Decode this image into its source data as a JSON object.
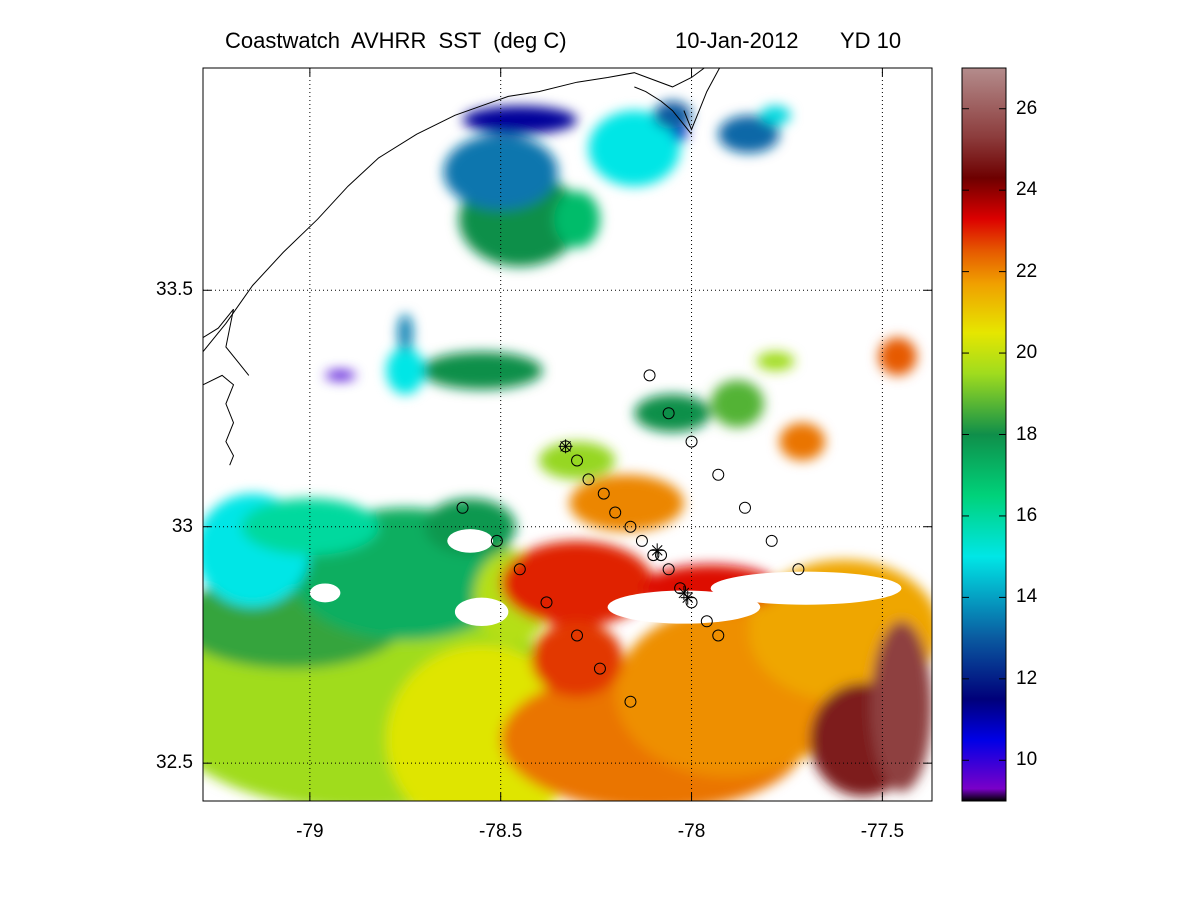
{
  "title": {
    "left": "Coastwatch  AVHRR  SST  (deg C)",
    "date": "10-Jan-2012",
    "yearday": "YD 10"
  },
  "map": {
    "lon_range": [
      -79.28,
      -77.37
    ],
    "lat_range": [
      32.42,
      33.97
    ],
    "x_ticks": [
      -79,
      -78.5,
      -78,
      -77.5
    ],
    "x_tick_labels": [
      "-79",
      "-78.5",
      "-78",
      "-77.5"
    ],
    "y_ticks": [
      32.5,
      33.0,
      33.5
    ],
    "y_tick_labels": [
      "32.5",
      "33",
      "33.5"
    ],
    "grid": "dotted"
  },
  "colorbar": {
    "range": [
      9,
      27
    ],
    "ticks": [
      10,
      12,
      14,
      16,
      18,
      20,
      22,
      24,
      26
    ],
    "tick_labels": [
      "10",
      "12",
      "14",
      "16",
      "18",
      "20",
      "22",
      "24",
      "26"
    ],
    "colors": [
      "#000000",
      "#7a00c8",
      "#0000e6",
      "#00007a",
      "#0a5aa0",
      "#00e6e6",
      "#00d27a",
      "#0f8f4a",
      "#a0dc1e",
      "#e6e600",
      "#f0a000",
      "#e65a00",
      "#dc0000",
      "#6e0000",
      "#8c3c3c",
      "#b48c8c"
    ],
    "color_stops": [
      9,
      9.3,
      10.5,
      11.5,
      13,
      15,
      16.5,
      18,
      19.5,
      20.5,
      21.7,
      22.5,
      23.3,
      24.3,
      25.3,
      27
    ]
  },
  "stations_circle": [
    [
      -78.6,
      33.04
    ],
    [
      -78.51,
      32.97
    ],
    [
      -78.45,
      32.91
    ],
    [
      -78.38,
      32.84
    ],
    [
      -78.3,
      32.77
    ],
    [
      -78.24,
      32.7
    ],
    [
      -78.16,
      32.63
    ],
    [
      -78.33,
      33.17
    ],
    [
      -78.3,
      33.14
    ],
    [
      -78.27,
      33.1
    ],
    [
      -78.23,
      33.07
    ],
    [
      -78.2,
      33.03
    ],
    [
      -78.16,
      33.0
    ],
    [
      -78.13,
      32.97
    ],
    [
      -78.1,
      32.94
    ],
    [
      -78.06,
      32.91
    ],
    [
      -78.03,
      32.87
    ],
    [
      -78.0,
      32.84
    ],
    [
      -77.96,
      32.8
    ],
    [
      -77.93,
      32.77
    ],
    [
      -78.11,
      33.32
    ],
    [
      -78.06,
      33.24
    ],
    [
      -78.0,
      33.18
    ],
    [
      -77.93,
      33.11
    ],
    [
      -77.86,
      33.04
    ],
    [
      -77.79,
      32.97
    ],
    [
      -77.72,
      32.91
    ],
    [
      -78.08,
      32.94
    ]
  ],
  "stations_star": [
    [
      -78.33,
      33.17
    ],
    [
      -78.09,
      32.95
    ],
    [
      -78.02,
      32.86
    ],
    [
      -78.01,
      32.85
    ]
  ],
  "sst_blobs": [
    {
      "lon": -78.85,
      "lat": 32.62,
      "rx": 0.55,
      "ry": 0.22,
      "sst": 19.5
    },
    {
      "lon": -78.55,
      "lat": 32.55,
      "rx": 0.25,
      "ry": 0.2,
      "sst": 20.4
    },
    {
      "lon": -79.05,
      "lat": 32.8,
      "rx": 0.3,
      "ry": 0.1,
      "sst": 18.4
    },
    {
      "lon": -78.75,
      "lat": 32.9,
      "rx": 0.3,
      "ry": 0.14,
      "sst": 17.3
    },
    {
      "lon": -79.15,
      "lat": 32.95,
      "rx": 0.15,
      "ry": 0.12,
      "sst": 15.0
    },
    {
      "lon": -79.0,
      "lat": 33.0,
      "rx": 0.18,
      "ry": 0.06,
      "sst": 16.0
    },
    {
      "lon": -78.58,
      "lat": 33.0,
      "rx": 0.12,
      "ry": 0.06,
      "sst": 17.8
    },
    {
      "lon": -78.47,
      "lat": 32.85,
      "rx": 0.1,
      "ry": 0.1,
      "sst": 19.8
    },
    {
      "lon": -78.1,
      "lat": 32.55,
      "rx": 0.4,
      "ry": 0.15,
      "sst": 22.2
    },
    {
      "lon": -77.9,
      "lat": 32.65,
      "rx": 0.3,
      "ry": 0.18,
      "sst": 21.9
    },
    {
      "lon": -77.6,
      "lat": 32.78,
      "rx": 0.25,
      "ry": 0.15,
      "sst": 21.6
    },
    {
      "lon": -78.3,
      "lat": 32.88,
      "rx": 0.2,
      "ry": 0.09,
      "sst": 23.0
    },
    {
      "lon": -78.3,
      "lat": 32.72,
      "rx": 0.12,
      "ry": 0.08,
      "sst": 22.8
    },
    {
      "lon": -77.95,
      "lat": 32.87,
      "rx": 0.18,
      "ry": 0.05,
      "sst": 23.2
    },
    {
      "lon": -77.55,
      "lat": 32.55,
      "rx": 0.14,
      "ry": 0.12,
      "sst": 24.8
    },
    {
      "lon": -77.45,
      "lat": 32.62,
      "rx": 0.08,
      "ry": 0.18,
      "sst": 25.4
    },
    {
      "lon": -78.17,
      "lat": 33.05,
      "rx": 0.15,
      "ry": 0.06,
      "sst": 22.0
    },
    {
      "lon": -78.3,
      "lat": 33.14,
      "rx": 0.1,
      "ry": 0.04,
      "sst": 19.4
    },
    {
      "lon": -78.05,
      "lat": 33.24,
      "rx": 0.1,
      "ry": 0.04,
      "sst": 18.0
    },
    {
      "lon": -77.88,
      "lat": 33.26,
      "rx": 0.07,
      "ry": 0.05,
      "sst": 18.7
    },
    {
      "lon": -77.78,
      "lat": 33.35,
      "rx": 0.05,
      "ry": 0.02,
      "sst": 19.5
    },
    {
      "lon": -77.71,
      "lat": 33.18,
      "rx": 0.06,
      "ry": 0.04,
      "sst": 22.2
    },
    {
      "lon": -77.46,
      "lat": 33.36,
      "rx": 0.05,
      "ry": 0.04,
      "sst": 22.5
    },
    {
      "lon": -78.55,
      "lat": 33.33,
      "rx": 0.16,
      "ry": 0.04,
      "sst": 18.0
    },
    {
      "lon": -78.75,
      "lat": 33.33,
      "rx": 0.05,
      "ry": 0.05,
      "sst": 15.0
    },
    {
      "lon": -78.75,
      "lat": 33.41,
      "rx": 0.02,
      "ry": 0.04,
      "sst": 13.6
    },
    {
      "lon": -78.92,
      "lat": 33.32,
      "rx": 0.04,
      "ry": 0.01,
      "sst": 9.8
    },
    {
      "lon": -78.45,
      "lat": 33.65,
      "rx": 0.16,
      "ry": 0.1,
      "sst": 18.0
    },
    {
      "lon": -78.5,
      "lat": 33.75,
      "rx": 0.15,
      "ry": 0.08,
      "sst": 13.4
    },
    {
      "lon": -78.3,
      "lat": 33.65,
      "rx": 0.06,
      "ry": 0.06,
      "sst": 17.0
    },
    {
      "lon": -78.15,
      "lat": 33.8,
      "rx": 0.12,
      "ry": 0.08,
      "sst": 15.0
    },
    {
      "lon": -78.05,
      "lat": 33.87,
      "rx": 0.05,
      "ry": 0.03,
      "sst": 13.0
    },
    {
      "lon": -78.45,
      "lat": 33.86,
      "rx": 0.15,
      "ry": 0.03,
      "sst": 11.2
    },
    {
      "lon": -77.85,
      "lat": 33.83,
      "rx": 0.08,
      "ry": 0.04,
      "sst": 13.2
    },
    {
      "lon": -77.78,
      "lat": 33.87,
      "rx": 0.04,
      "ry": 0.02,
      "sst": 14.8
    },
    {
      "lon": -78.03,
      "lat": 33.83,
      "rx": 0.02,
      "ry": 0.015,
      "sst": 10.8
    }
  ],
  "sst_holes": [
    {
      "lon": -78.02,
      "lat": 32.83,
      "rx": 0.2,
      "ry": 0.035
    },
    {
      "lon": -77.7,
      "lat": 32.87,
      "rx": 0.25,
      "ry": 0.035
    },
    {
      "lon": -78.55,
      "lat": 32.82,
      "rx": 0.07,
      "ry": 0.03
    },
    {
      "lon": -78.58,
      "lat": 32.97,
      "rx": 0.06,
      "ry": 0.025
    },
    {
      "lon": -78.96,
      "lat": 32.86,
      "rx": 0.04,
      "ry": 0.02
    }
  ],
  "coastline": [
    [
      -79.28,
      33.37
    ],
    [
      -79.22,
      33.43
    ],
    [
      -79.15,
      33.51
    ],
    [
      -79.07,
      33.58
    ],
    [
      -78.98,
      33.65
    ],
    [
      -78.9,
      33.72
    ],
    [
      -78.82,
      33.78
    ],
    [
      -78.72,
      33.83
    ],
    [
      -78.62,
      33.87
    ],
    [
      -78.55,
      33.89
    ],
    [
      -78.48,
      33.91
    ],
    [
      -78.4,
      33.92
    ],
    [
      -78.3,
      33.94
    ],
    [
      -78.22,
      33.95
    ],
    [
      -78.15,
      33.96
    ],
    [
      -78.05,
      33.93
    ],
    [
      -78.0,
      33.95
    ],
    [
      -77.95,
      33.98
    ]
  ],
  "inlet_coast": [
    [
      -79.28,
      33.3
    ],
    [
      -79.23,
      33.32
    ],
    [
      -79.2,
      33.3
    ],
    [
      -79.22,
      33.26
    ],
    [
      -79.2,
      33.22
    ],
    [
      -79.22,
      33.18
    ],
    [
      -79.2,
      33.15
    ],
    [
      -79.21,
      33.13
    ]
  ],
  "inlet_coast_2": [
    [
      -79.28,
      33.4
    ],
    [
      -79.24,
      33.42
    ],
    [
      -79.2,
      33.46
    ],
    [
      -79.22,
      33.38
    ],
    [
      -79.19,
      33.35
    ],
    [
      -79.16,
      33.32
    ]
  ],
  "cape_fear_coast": [
    [
      -78.02,
      33.88
    ],
    [
      -78.0,
      33.84
    ],
    [
      -77.98,
      33.88
    ],
    [
      -77.96,
      33.92
    ],
    [
      -77.94,
      33.95
    ],
    [
      -77.92,
      33.98
    ]
  ],
  "nc_coast_bits": [
    [
      -78.15,
      33.93
    ],
    [
      -78.12,
      33.92
    ],
    [
      -78.08,
      33.9
    ],
    [
      -78.05,
      33.88
    ],
    [
      -78.02,
      33.85
    ],
    [
      -78.0,
      33.83
    ]
  ]
}
